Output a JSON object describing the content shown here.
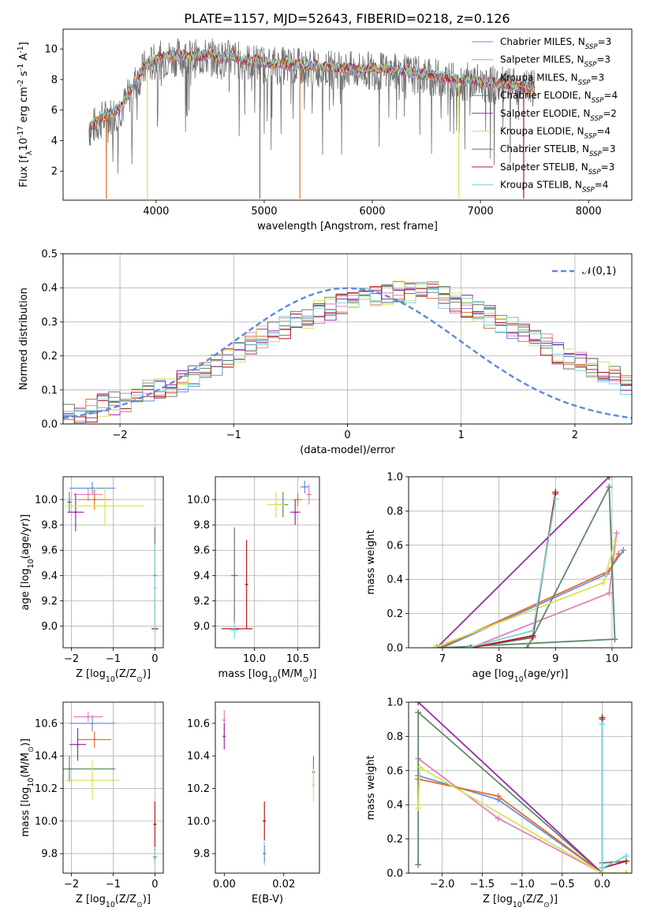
{
  "figure_title": "PLATE=1157, MJD=52643, FIBERID=0218, z=0.126",
  "colors": {
    "chabrier_miles": "#6a8fdb",
    "salpeter_miles": "#e083b8",
    "kroupa_miles": "#e0702a",
    "chabrier_elodie": "#5e8a68",
    "salpeter_elodie": "#9a2aa8",
    "kroupa_elodie": "#d5e35a",
    "chabrier_stelib": "#707070",
    "salpeter_stelib": "#b41c1c",
    "kroupa_stelib": "#7ad6de",
    "normal": "#5b8bd9"
  },
  "chart_data": [
    {
      "id": "spectrum",
      "type": "line",
      "xlabel": "wavelength [Angstrom, rest frame]",
      "ylabel": "Flux [f$_\\lambda$10$^{-17}$ erg cm$^{-2}$ s$^{-1}$ A$^{-1}$]",
      "xlim": [
        3140,
        8400
      ],
      "ylim": [
        0.1,
        11.3
      ],
      "xticks": [
        4000,
        5000,
        6000,
        7000,
        8000
      ],
      "yticks": [
        2,
        4,
        6,
        8,
        10
      ],
      "grid": false,
      "legend_position": "right",
      "legend": [
        "Chabrier MILES, N$_{SSP}$=3",
        "Salpeter MILES, N$_{SSP}$=3",
        "Kroupa MILES, N$_{SSP}$=3",
        "Chabrier ELODIE, N$_{SSP}$=4",
        "Salpeter ELODIE, N$_{SSP}$=2",
        "Kroupa ELODIE, N$_{SSP}$=4",
        "Chabrier STELIB, N$_{SSP}$=3",
        "Salpeter STELIB, N$_{SSP}$=3",
        "Kroupa STELIB, N$_{SSP}$=4"
      ],
      "continuum_x": [
        3380,
        3500,
        3600,
        3700,
        3800,
        3900,
        4000,
        4100,
        4200,
        4300,
        4400,
        4500,
        4600,
        4700,
        4800,
        4900,
        5000,
        5200,
        5400,
        5600,
        5800,
        6000,
        6200,
        6400,
        6600,
        6800,
        7000,
        7200,
        7400,
        7500
      ],
      "continuum_y": [
        4.8,
        5.5,
        5.8,
        6.4,
        7.8,
        8.9,
        9.3,
        9.5,
        9.6,
        9.5,
        9.5,
        9.6,
        9.4,
        9.5,
        9.3,
        9.2,
        9.1,
        9.0,
        8.9,
        8.8,
        8.7,
        8.7,
        8.6,
        8.4,
        8.2,
        8.0,
        7.9,
        7.7,
        7.5,
        7.5
      ],
      "dips": [
        [
          3540,
          0.2
        ],
        [
          3920,
          0.2
        ],
        [
          4960,
          0.2
        ],
        [
          5330,
          0.2
        ],
        [
          6800,
          0.2
        ],
        [
          7400,
          0.2
        ]
      ]
    },
    {
      "id": "residuals",
      "type": "bar",
      "xlabel": "(data-model)/error",
      "ylabel": "Normed distribution",
      "xlim": [
        -2.5,
        2.5
      ],
      "ylim": [
        0,
        0.5
      ],
      "xticks": [
        -2,
        -1,
        0,
        1,
        2
      ],
      "yticks": [
        0.0,
        0.1,
        0.2,
        0.3,
        0.4,
        0.5
      ],
      "grid": true,
      "legend_position": "top-right",
      "normal_label": "$\\mathcal{N}(0,1)$",
      "bin_edges_start": -2.5,
      "bin_width": 0.1,
      "base_hist": [
        0.025,
        0.03,
        0.04,
        0.055,
        0.06,
        0.07,
        0.08,
        0.095,
        0.1,
        0.11,
        0.125,
        0.14,
        0.16,
        0.175,
        0.195,
        0.215,
        0.235,
        0.255,
        0.27,
        0.285,
        0.3,
        0.315,
        0.33,
        0.34,
        0.35,
        0.36,
        0.37,
        0.375,
        0.38,
        0.385,
        0.39,
        0.39,
        0.385,
        0.37,
        0.36,
        0.345,
        0.33,
        0.315,
        0.3,
        0.285,
        0.265,
        0.25,
        0.23,
        0.21,
        0.195,
        0.18,
        0.165,
        0.15,
        0.135,
        0.12
      ]
    },
    {
      "id": "age_vs_Z",
      "type": "scatter",
      "xlabel": "Z [log$_{10}$(Z/Z$_\\odot$)]",
      "ylabel": "age  [log$_{10}$(age/yr)]",
      "xlim": [
        -2.2,
        0.2
      ],
      "ylim": [
        8.83,
        10.18
      ],
      "xticks": [
        -2,
        -1,
        0
      ],
      "yticks": [
        9.0,
        9.2,
        9.4,
        9.6,
        9.8,
        10.0
      ],
      "grid": true,
      "points": [
        {
          "x": -1.5,
          "y": 10.09,
          "xerr": 0.55,
          "yerr": 0.05,
          "color": "chabrier_miles"
        },
        {
          "x": -1.6,
          "y": 10.04,
          "xerr": 0.35,
          "yerr": 0.05,
          "color": "salpeter_miles"
        },
        {
          "x": -1.45,
          "y": 10.0,
          "xerr": 0.4,
          "yerr": 0.08,
          "color": "kroupa_miles"
        },
        {
          "x": -2.05,
          "y": 9.98,
          "xerr": 0.05,
          "yerr": 0.08,
          "color": "chabrier_elodie"
        },
        {
          "x": -1.9,
          "y": 9.9,
          "xerr": 0.2,
          "yerr": 0.15,
          "color": "salpeter_elodie"
        },
        {
          "x": -1.2,
          "y": 9.95,
          "xerr": 0.95,
          "yerr": 0.15,
          "color": "kroupa_elodie"
        },
        {
          "x": 0.0,
          "y": 9.4,
          "xerr": 0.02,
          "yerr": 0.38,
          "color": "chabrier_stelib"
        },
        {
          "x": 0.0,
          "y": 8.98,
          "xerr": 0.08,
          "yerr": 0.0,
          "color": "salpeter_stelib"
        },
        {
          "x": 0.0,
          "y": 9.3,
          "xerr": 0.02,
          "yerr": 0.35,
          "color": "kroupa_stelib"
        }
      ]
    },
    {
      "id": "age_vs_mass",
      "type": "scatter",
      "xlabel": "mass [log$_{10}$(M/M$_\\odot$)]",
      "ylabel": "",
      "xlim": [
        9.55,
        10.75
      ],
      "ylim": [
        8.83,
        10.18
      ],
      "xticks": [
        10.0,
        10.5
      ],
      "yticks": [
        9.0,
        9.2,
        9.4,
        9.6,
        9.8,
        10.0
      ],
      "grid": true,
      "points": [
        {
          "x": 10.58,
          "y": 10.1,
          "xerr": 0.05,
          "yerr": 0.05,
          "color": "chabrier_miles"
        },
        {
          "x": 10.63,
          "y": 10.04,
          "xerr": 0.03,
          "yerr": 0.08,
          "color": "salpeter_miles"
        },
        {
          "x": 10.5,
          "y": 10.0,
          "xerr": 0.05,
          "yerr": 0.05,
          "color": "kroupa_miles"
        },
        {
          "x": 10.33,
          "y": 9.96,
          "xerr": 0.06,
          "yerr": 0.1,
          "color": "chabrier_elodie"
        },
        {
          "x": 10.47,
          "y": 9.9,
          "xerr": 0.06,
          "yerr": 0.1,
          "color": "salpeter_elodie"
        },
        {
          "x": 10.25,
          "y": 9.96,
          "xerr": 0.1,
          "yerr": 0.1,
          "color": "kroupa_elodie"
        },
        {
          "x": 9.77,
          "y": 9.4,
          "xerr": 0.04,
          "yerr": 0.38,
          "color": "chabrier_stelib"
        },
        {
          "x": 9.91,
          "y": 9.33,
          "xerr": 0.0,
          "yerr": 0.35,
          "color": "salpeter_stelib"
        },
        {
          "x": 9.8,
          "y": 8.98,
          "xerr": 0.18,
          "yerr": 0.0,
          "color": "salpeter_stelib"
        },
        {
          "x": 9.77,
          "y": 8.97,
          "xerr": 0.05,
          "yerr": 0.07,
          "color": "kroupa_stelib"
        }
      ]
    },
    {
      "id": "weight_vs_age",
      "type": "line",
      "xlabel": "age  [log$_{10}$(age/yr)]",
      "ylabel": "mass weight",
      "xlim": [
        6.4,
        10.35
      ],
      "ylim": [
        0,
        1
      ],
      "xticks": [
        7,
        8,
        9,
        10
      ],
      "yticks": [
        0.0,
        0.2,
        0.4,
        0.6,
        0.8,
        1.0
      ],
      "grid": true,
      "series": [
        {
          "color": "chabrier_miles",
          "x": [
            7.0,
            9.9,
            10.2
          ],
          "y": [
            0.0,
            0.43,
            0.57
          ]
        },
        {
          "color": "salpeter_miles",
          "x": [
            7.5,
            9.95,
            10.08
          ],
          "y": [
            0.0,
            0.32,
            0.67
          ]
        },
        {
          "color": "kroupa_miles",
          "x": [
            6.95,
            9.95,
            10.12
          ],
          "y": [
            0.0,
            0.45,
            0.55
          ]
        },
        {
          "color": "chabrier_elodie",
          "x": [
            8.5,
            9.95,
            10.05,
            7.0
          ],
          "y": [
            0.0,
            0.94,
            0.05,
            0.0
          ]
        },
        {
          "color": "salpeter_elodie",
          "x": [
            6.9,
            9.95
          ],
          "y": [
            0.0,
            1.0
          ]
        },
        {
          "color": "kroupa_elodie",
          "x": [
            6.85,
            9.85,
            10.05
          ],
          "y": [
            0.0,
            0.38,
            0.62
          ]
        },
        {
          "color": "chabrier_stelib",
          "x": [
            7.5,
            8.6,
            9.0
          ],
          "y": [
            0.0,
            0.06,
            0.9
          ]
        },
        {
          "color": "salpeter_stelib",
          "x": [
            7.5,
            8.6,
            9.0
          ],
          "y": [
            0.0,
            0.07,
            0.91
          ]
        },
        {
          "color": "kroupa_stelib",
          "x": [
            7.45,
            8.6,
            9.0
          ],
          "y": [
            0.0,
            0.1,
            0.87
          ]
        }
      ]
    },
    {
      "id": "mass_vs_Z",
      "type": "scatter",
      "xlabel": "Z [log$_{10}$(Z/Z$_\\odot$)]",
      "ylabel": "mass [log$_{10}$(M/M$_\\odot$)]",
      "xlim": [
        -2.2,
        0.2
      ],
      "ylim": [
        9.68,
        10.73
      ],
      "xticks": [
        -2,
        -1,
        0
      ],
      "yticks": [
        9.8,
        10.0,
        10.2,
        10.4,
        10.6
      ],
      "grid": true,
      "points": [
        {
          "x": -1.5,
          "y": 10.6,
          "xerr": 0.55,
          "yerr": 0.05,
          "color": "chabrier_miles"
        },
        {
          "x": -1.6,
          "y": 10.64,
          "xerr": 0.35,
          "yerr": 0.03,
          "color": "salpeter_miles"
        },
        {
          "x": -1.45,
          "y": 10.5,
          "xerr": 0.4,
          "yerr": 0.05,
          "color": "kroupa_miles"
        },
        {
          "x": -2.05,
          "y": 10.32,
          "xerr": 0.05,
          "yerr": 0.08,
          "color": "chabrier_elodie"
        },
        {
          "x": -2.0,
          "y": 10.32,
          "xerr": 1.05,
          "yerr": 0.0,
          "color": "chabrier_elodie"
        },
        {
          "x": -1.85,
          "y": 10.47,
          "xerr": 0.2,
          "yerr": 0.1,
          "color": "salpeter_elodie"
        },
        {
          "x": -1.5,
          "y": 10.25,
          "xerr": 0.65,
          "yerr": 0.12,
          "color": "kroupa_elodie"
        },
        {
          "x": 0.0,
          "y": 9.78,
          "xerr": 0.02,
          "yerr": 0.05,
          "color": "chabrier_stelib"
        },
        {
          "x": 0.0,
          "y": 9.98,
          "xerr": 0.02,
          "yerr": 0.14,
          "color": "salpeter_stelib"
        },
        {
          "x": 0.0,
          "y": 9.77,
          "xerr": 0.03,
          "yerr": 0.05,
          "color": "kroupa_stelib"
        }
      ]
    },
    {
      "id": "mass_vs_EBV",
      "type": "scatter",
      "xlabel": "E(B-V)",
      "ylabel": "",
      "xlim": [
        -0.003,
        0.032
      ],
      "ylim": [
        9.68,
        10.73
      ],
      "xticks": [
        0.0,
        0.02
      ],
      "yticks": [
        9.8,
        10.0,
        10.2,
        10.4,
        10.6
      ],
      "grid": false,
      "points": [
        {
          "x": 0.0,
          "y": 10.62,
          "xerr": 0.0,
          "yerr": 0.06,
          "color": "salpeter_miles"
        },
        {
          "x": 0.0,
          "y": 10.52,
          "xerr": 0.0,
          "yerr": 0.08,
          "color": "salpeter_elodie"
        },
        {
          "x": 0.0135,
          "y": 10.0,
          "xerr": 0.0,
          "yerr": 0.12,
          "color": "salpeter_stelib"
        },
        {
          "x": 0.0135,
          "y": 9.8,
          "xerr": 0.0,
          "yerr": 0.07,
          "color": "kroupa_stelib"
        },
        {
          "x": 0.0135,
          "y": 9.8,
          "xerr": 0.0,
          "yerr": 0.05,
          "color": "chabrier_miles"
        },
        {
          "x": 0.03,
          "y": 10.3,
          "xerr": 0.0,
          "yerr": 0.1,
          "color": "chabrier_elodie"
        },
        {
          "x": 0.03,
          "y": 10.22,
          "xerr": 0.0,
          "yerr": 0.1,
          "color": "kroupa_elodie"
        }
      ]
    },
    {
      "id": "weight_vs_Z",
      "type": "line",
      "xlabel": "Z [log$_{10}$(Z/Z$_\\odot$)]",
      "ylabel": "mass weight",
      "xlim": [
        -2.42,
        0.37
      ],
      "ylim": [
        0,
        1
      ],
      "xticks": [
        -2.0,
        -1.5,
        -1.0,
        -0.5,
        0.0
      ],
      "yticks": [
        0.0,
        0.2,
        0.4,
        0.6,
        0.8,
        1.0
      ],
      "grid": true,
      "series": [
        {
          "color": "chabrier_miles",
          "x": [
            -2.3,
            -1.3,
            0.0,
            0.3
          ],
          "y": [
            0.57,
            0.43,
            0.0,
            0.0
          ]
        },
        {
          "color": "salpeter_miles",
          "x": [
            -2.3,
            -1.3,
            0.0,
            0.3
          ],
          "y": [
            0.67,
            0.32,
            0.0,
            0.0
          ]
        },
        {
          "color": "kroupa_miles",
          "x": [
            -2.3,
            -1.3,
            0.0
          ],
          "y": [
            0.55,
            0.45,
            0.0
          ]
        },
        {
          "color": "chabrier_elodie",
          "x": [
            -2.3,
            -2.3,
            0.0,
            0.0
          ],
          "y": [
            0.05,
            0.94,
            0.0,
            0.0
          ]
        },
        {
          "color": "salpeter_elodie",
          "x": [
            -2.3,
            0.0
          ],
          "y": [
            1.0,
            0.0
          ]
        },
        {
          "color": "kroupa_elodie",
          "x": [
            -2.3,
            -2.28,
            0.0,
            0.3
          ],
          "y": [
            0.38,
            0.62,
            0.0,
            0.0
          ]
        },
        {
          "color": "chabrier_stelib",
          "x": [
            0.0,
            0.0,
            0.3
          ],
          "y": [
            0.9,
            0.06,
            0.07
          ]
        },
        {
          "color": "salpeter_stelib",
          "x": [
            0.0,
            0.0,
            0.3
          ],
          "y": [
            0.91,
            0.03,
            0.07
          ]
        },
        {
          "color": "kroupa_stelib",
          "x": [
            0.0,
            0.0,
            0.3
          ],
          "y": [
            0.87,
            0.03,
            0.1
          ]
        }
      ]
    }
  ]
}
